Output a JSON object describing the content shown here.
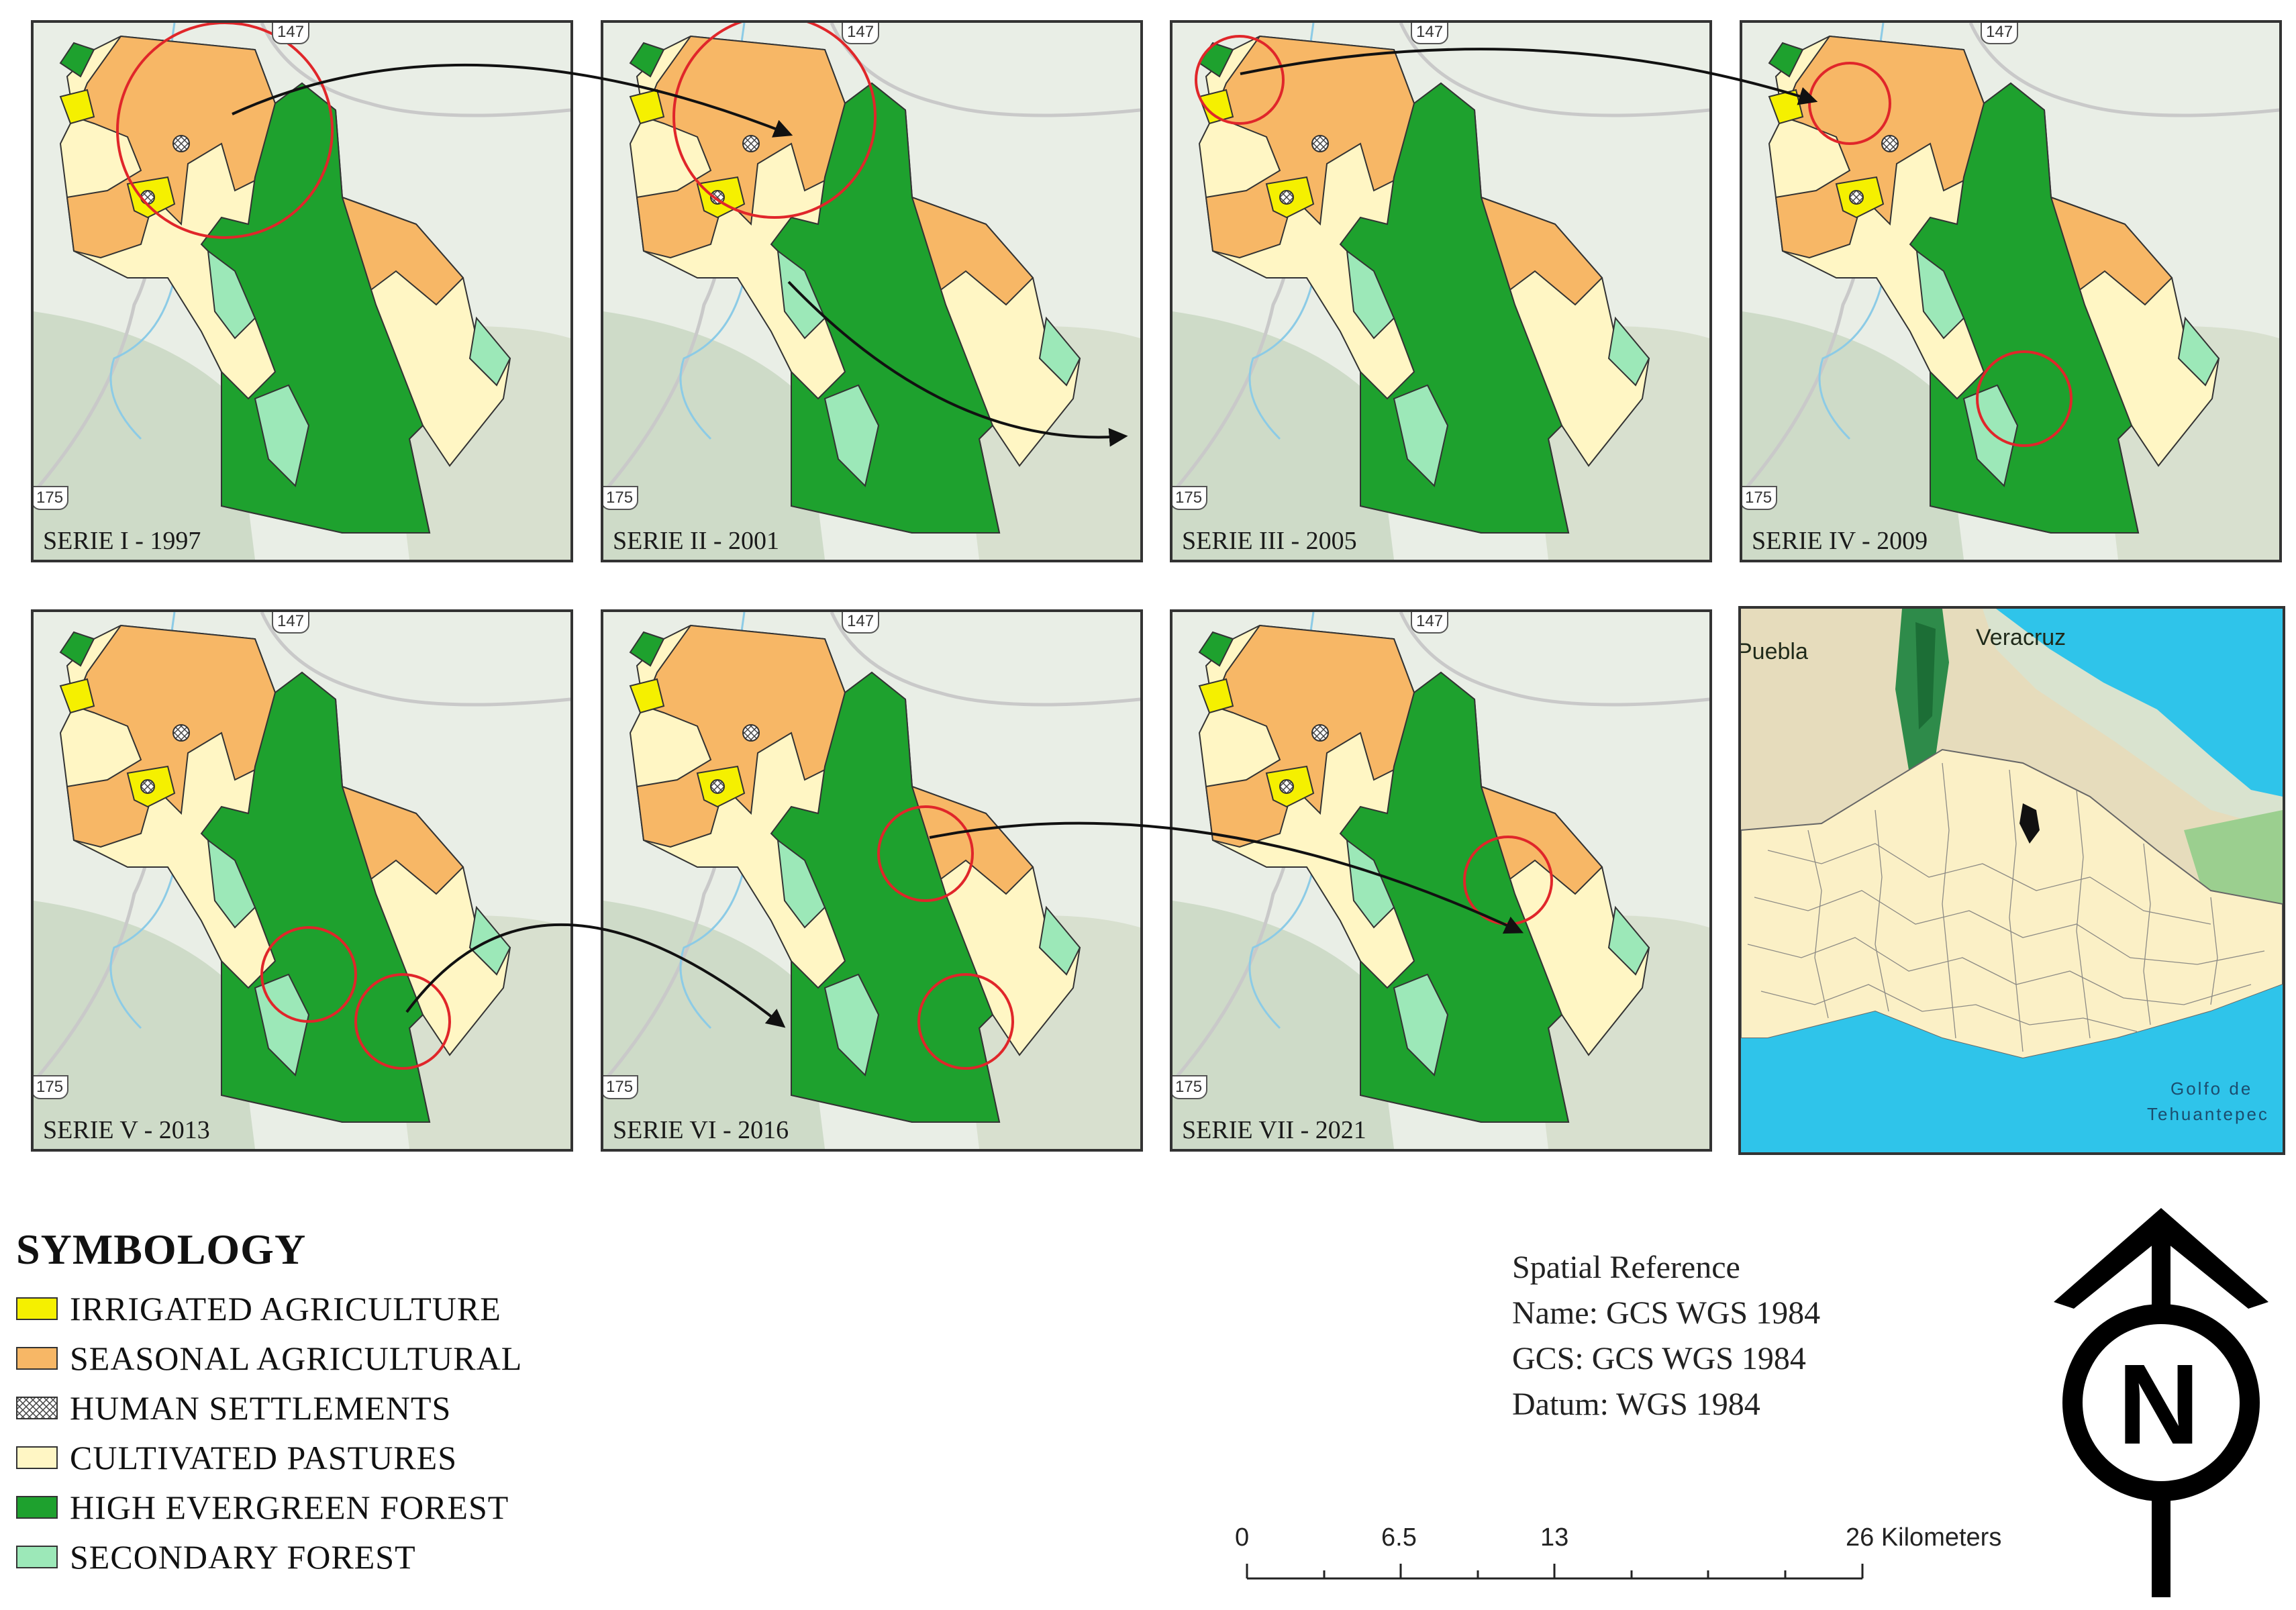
{
  "panels": [
    {
      "label": "SERIE I - 1997"
    },
    {
      "label": "SERIE II - 2001"
    },
    {
      "label": "SERIE III - 2005"
    },
    {
      "label": "SERIE IV - 2009"
    },
    {
      "label": "SERIE V - 2013"
    },
    {
      "label": "SERIE VI - 2016"
    },
    {
      "label": "SERIE VII - 2021"
    }
  ],
  "road_shields": {
    "top": "147",
    "left": "175"
  },
  "locator": {
    "places": [
      "Puebla",
      "Veracruz",
      "Golfo de",
      "Tehuantepec"
    ]
  },
  "colors": {
    "irrigated": "#f5f000",
    "seasonal": "#f7b766",
    "settlements": "#ffffff",
    "pastures": "#fff6c4",
    "high_forest": "#1ea12e",
    "secondary_forest": "#9ce8b8",
    "highlight_circle": "#e0262a",
    "water": "#2fc4ea"
  },
  "legend": {
    "title": "SYMBOLOGY",
    "items": [
      {
        "label": "IRRIGATED AGRICULTURE",
        "color": "#f5f000"
      },
      {
        "label": "SEASONAL AGRICULTURAL",
        "color": "#f7b766"
      },
      {
        "label": "HUMAN SETTLEMENTS",
        "color": "#ffffff"
      },
      {
        "label": "CULTIVATED PASTURES",
        "color": "#fff6c4"
      },
      {
        "label": "HIGH EVERGREEN FOREST",
        "color": "#1ea12e"
      },
      {
        "label": "SECONDARY FOREST",
        "color": "#9ce8b8"
      }
    ]
  },
  "spatial_reference": {
    "title": "Spatial Reference",
    "name": "Name: GCS WGS 1984",
    "gcs": "GCS: GCS WGS 1984",
    "datum": "Datum: WGS 1984"
  },
  "scale_bar": {
    "labels": [
      "0",
      "6.5",
      "13",
      "26 Kilometers"
    ]
  },
  "north_arrow": {
    "letter": "N"
  }
}
